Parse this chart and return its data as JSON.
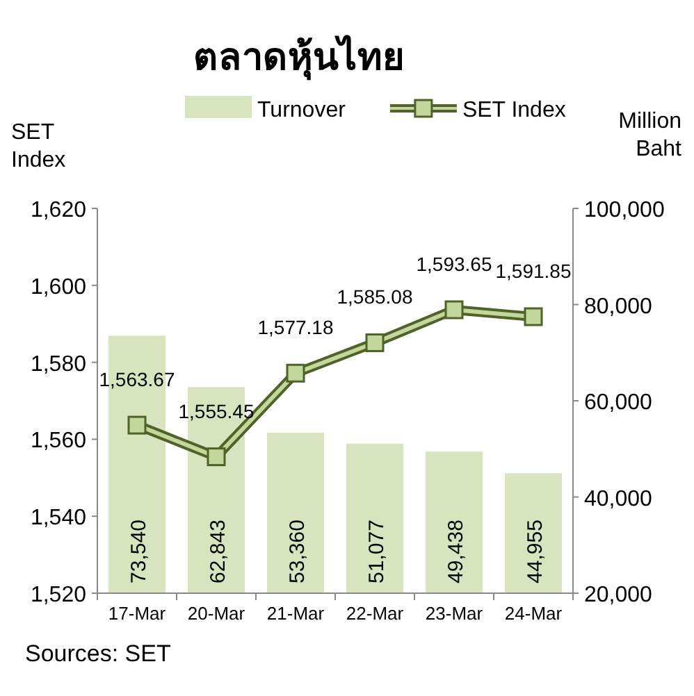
{
  "chart_data": {
    "type": "bar",
    "title": "ตลาดหุ้นไทย",
    "ylabel": "SET Index",
    "y2label": "Million Baht",
    "categories": [
      "17-Mar",
      "20-Mar",
      "21-Mar",
      "22-Mar",
      "23-Mar",
      "24-Mar"
    ],
    "series": [
      {
        "name": "Turnover",
        "axis": "y2",
        "color": "#d7e4bd",
        "values": [
          73540,
          62843,
          53360,
          51077,
          49438,
          44955
        ],
        "value_labels": [
          "73,540",
          "62,843",
          "53,360",
          "51,077",
          "49,438",
          "44,955"
        ]
      },
      {
        "name": "SET Index",
        "type": "line",
        "axis": "y",
        "color": "#4f6228",
        "marker": "square",
        "values": [
          1563.67,
          1555.45,
          1577.18,
          1585.08,
          1593.65,
          1591.85
        ],
        "value_labels": [
          "1,563.67",
          "1,555.45",
          "1,577.18",
          "1,585.08",
          "1,593.65",
          "1,591.85"
        ]
      }
    ],
    "ylim": [
      1520,
      1620
    ],
    "yticks": [
      {
        "value": 1520,
        "label": "1,520"
      },
      {
        "value": 1540,
        "label": "1,540"
      },
      {
        "value": 1560,
        "label": "1,560"
      },
      {
        "value": 1580,
        "label": "1,580"
      },
      {
        "value": 1600,
        "label": "1,600"
      },
      {
        "value": 1620,
        "label": "1,620"
      }
    ],
    "y2lim": [
      20000,
      100000
    ],
    "y2ticks": [
      {
        "value": 20000,
        "label": "20,000"
      },
      {
        "value": 40000,
        "label": "40,000"
      },
      {
        "value": 60000,
        "label": "60,000"
      },
      {
        "value": 80000,
        "label": "80,000"
      },
      {
        "value": 100000,
        "label": "100,000"
      }
    ],
    "legend": "top",
    "grid": false,
    "annotations": [
      "Sources: SET"
    ]
  }
}
